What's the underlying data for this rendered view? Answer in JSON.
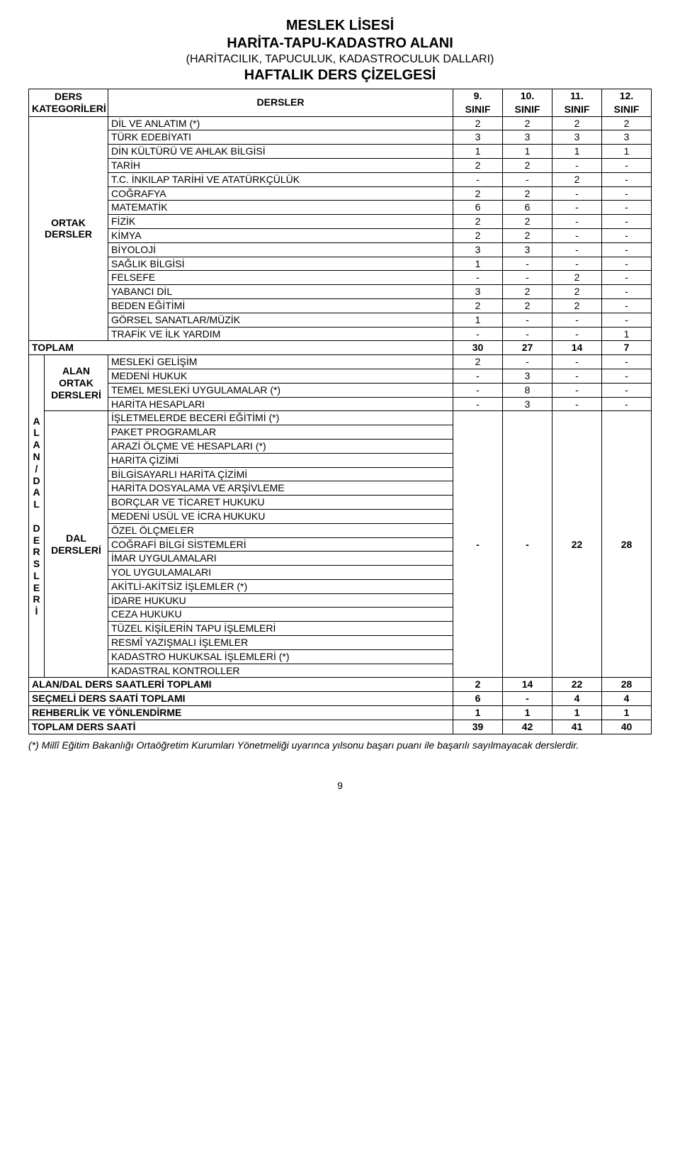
{
  "title": {
    "line1": "MESLEK LİSESİ",
    "line2": "HARİTA-TAPU-KADASTRO ALANI",
    "line3": "(HARİTACILIK, TAPUCULUK, KADASTROCULUK DALLARI)",
    "line4": "HAFTALIK DERS ÇİZELGESİ"
  },
  "header": {
    "categories": "DERS KATEGORİLERİ",
    "courses": "DERSLER",
    "c9a": "9.",
    "c9b": "SINIF",
    "c10a": "10.",
    "c10b": "SINIF",
    "c11a": "11.",
    "c11b": "SINIF",
    "c12a": "12.",
    "c12b": "SINIF"
  },
  "ortak_label": "ORTAK DERSLER",
  "ortak": [
    {
      "name": "DİL VE ANLATIM (*)",
      "v": [
        "2",
        "2",
        "2",
        "2"
      ]
    },
    {
      "name": "TÜRK EDEBİYATI",
      "v": [
        "3",
        "3",
        "3",
        "3"
      ]
    },
    {
      "name": "DİN KÜLTÜRÜ VE AHLAK BİLGİSİ",
      "v": [
        "1",
        "1",
        "1",
        "1"
      ]
    },
    {
      "name": "TARİH",
      "v": [
        "2",
        "2",
        "-",
        "-"
      ]
    },
    {
      "name": "T.C. İNKILAP TARİHİ VE ATATÜRKÇÜLÜK",
      "v": [
        "-",
        "-",
        "2",
        "-"
      ]
    },
    {
      "name": "COĞRAFYA",
      "v": [
        "2",
        "2",
        "-",
        "-"
      ]
    },
    {
      "name": "MATEMATİK",
      "v": [
        "6",
        "6",
        "-",
        "-"
      ]
    },
    {
      "name": "FİZİK",
      "v": [
        "2",
        "2",
        "-",
        "-"
      ]
    },
    {
      "name": "KİMYA",
      "v": [
        "2",
        "2",
        "-",
        "-"
      ]
    },
    {
      "name": "BİYOLOJİ",
      "v": [
        "3",
        "3",
        "-",
        "-"
      ]
    },
    {
      "name": "SAĞLIK BİLGİSİ",
      "v": [
        "1",
        "-",
        "-",
        "-"
      ]
    },
    {
      "name": "FELSEFE",
      "v": [
        "-",
        "-",
        "2",
        "-"
      ]
    },
    {
      "name": "YABANCI DİL",
      "v": [
        "3",
        "2",
        "2",
        "-"
      ]
    },
    {
      "name": "BEDEN EĞİTİMİ",
      "v": [
        "2",
        "2",
        "2",
        "-"
      ]
    },
    {
      "name": "GÖRSEL SANATLAR/MÜZİK",
      "v": [
        "1",
        "-",
        "-",
        "-"
      ]
    },
    {
      "name": "TRAFİK VE İLK YARDIM",
      "v": [
        "-",
        "-",
        "-",
        "1"
      ]
    }
  ],
  "toplam": {
    "label": "TOPLAM",
    "v": [
      "30",
      "27",
      "14",
      "7"
    ]
  },
  "vlabel": "A\nL\nA\nN\n/\nD\nA\nL\n\nD\nE\nR\nS\nL\nE\nR\nİ",
  "alan_ortak_label": "ALAN\nORTAK\nDERSLERİ",
  "alan_ortak": [
    {
      "name": "MESLEKİ GELİŞİM",
      "v": [
        "2",
        "-",
        "-",
        "-"
      ]
    },
    {
      "name": "MEDENİ HUKUK",
      "v": [
        "-",
        "3",
        "-",
        "-"
      ]
    },
    {
      "name": "TEMEL MESLEKİ UYGULAMALAR (*)",
      "v": [
        "-",
        "8",
        "-",
        "-"
      ]
    },
    {
      "name": "HARİTA HESAPLARI",
      "v": [
        "-",
        "3",
        "-",
        "-"
      ]
    }
  ],
  "dal_label": "DAL\nDERSLERİ",
  "dal_block": {
    "v9": "-",
    "v10": "-",
    "v11": "22",
    "v12": "28"
  },
  "dal_rows": [
    "İŞLETMELERDE BECERİ EĞİTİMİ (*)",
    "PAKET PROGRAMLAR",
    "ARAZİ ÖLÇME VE HESAPLARI (*)",
    "HARİTA ÇİZİMİ",
    "BİLGİSAYARLI HARİTA ÇİZİMİ",
    "HARİTA DOSYALAMA VE ARŞİVLEME",
    "BORÇLAR VE TİCARET HUKUKU",
    "MEDENİ USÜL VE İCRA HUKUKU",
    "ÖZEL ÖLÇMELER",
    "COĞRAFİ BİLGİ SİSTEMLERİ",
    "İMAR UYGULAMALARI",
    "YOL UYGULAMALARI",
    "AKİTLİ-AKİTSİZ İŞLEMLER (*)",
    "İDARE HUKUKU",
    "CEZA HUKUKU",
    "TÜZEL KİŞİLERİN TAPU İŞLEMLERİ",
    "RESMÎ YAZIŞMALI İŞLEMLER",
    "KADASTRO HUKUKSAL İŞLEMLERİ (*)",
    "KADASTRAL KONTROLLER"
  ],
  "summary": [
    {
      "label": "ALAN/DAL DERS SAATLERİ TOPLAMI",
      "v": [
        "2",
        "14",
        "22",
        "28"
      ]
    },
    {
      "label": "SEÇMELİ DERS SAATİ TOPLAMI",
      "v": [
        "6",
        "-",
        "4",
        "4"
      ]
    },
    {
      "label": "REHBERLİK VE YÖNLENDİRME",
      "v": [
        "1",
        "1",
        "1",
        "1"
      ]
    },
    {
      "label": "TOPLAM DERS SAATİ",
      "v": [
        "39",
        "42",
        "41",
        "40"
      ]
    }
  ],
  "footnote": "(*) Millî Eğitim Bakanlığı Ortaöğretim Kurumları Yönetmeliği uyarınca yılsonu başarı puanı ile başarılı sayılmayacak derslerdir.",
  "page_number": "9",
  "style": {
    "font_family": "Arial",
    "title_bold_fontsize_pt": 15,
    "title_plain_fontsize_pt": 12,
    "body_fontsize_pt": 10.5,
    "border_color": "#000000",
    "background_color": "#ffffff",
    "text_color": "#000000"
  }
}
